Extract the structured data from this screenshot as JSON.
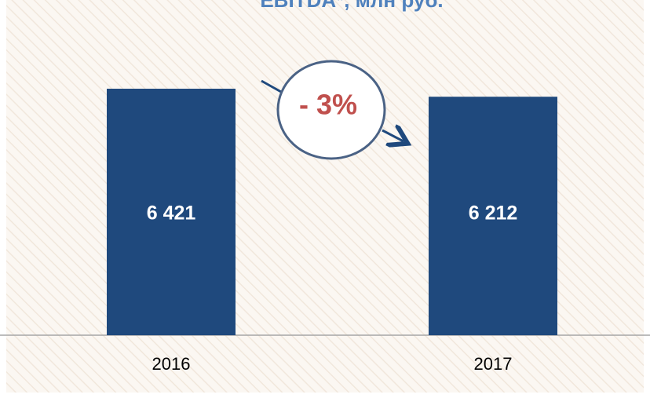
{
  "chart_data": {
    "type": "bar",
    "title": "EBITDA*, млн руб.",
    "categories": [
      "2016",
      "2017"
    ],
    "values": [
      6421,
      6212
    ],
    "value_labels": [
      "6 421",
      "6 212"
    ],
    "color": "#1f497d",
    "annotation": "- 3%"
  }
}
